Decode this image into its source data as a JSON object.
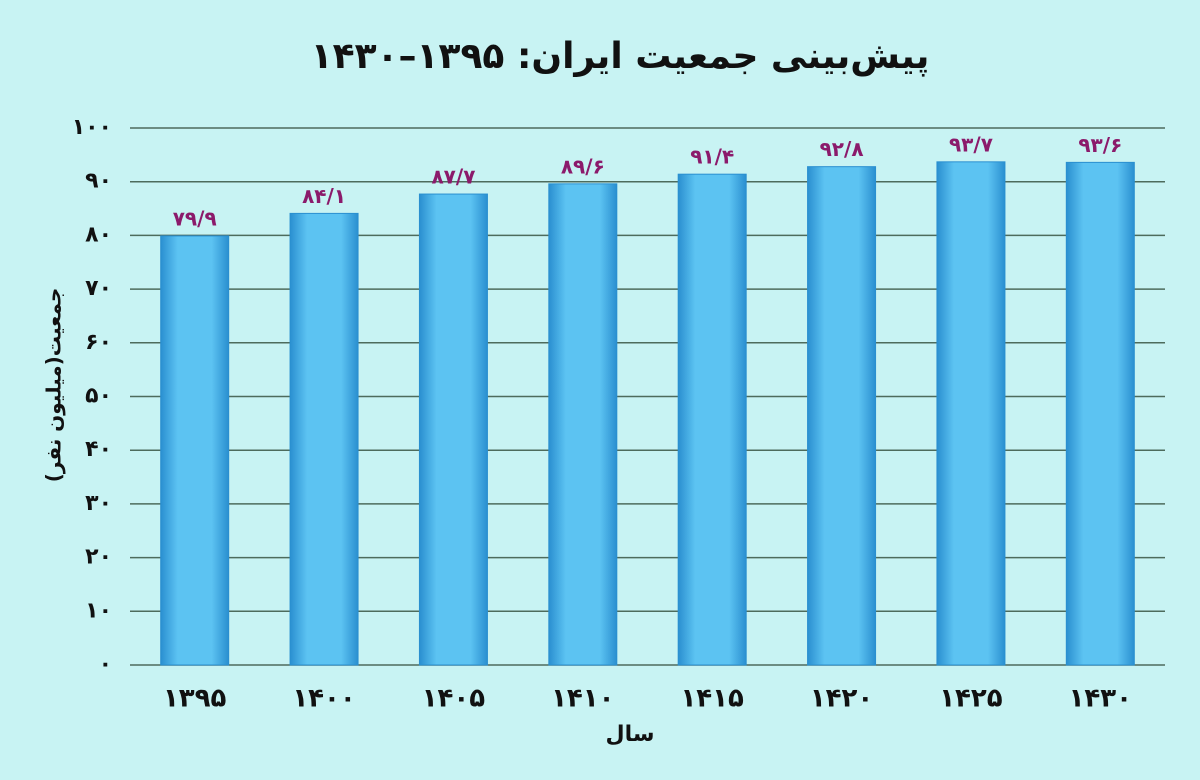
{
  "chart_data": {
    "type": "bar",
    "title": "پیش‌بینی جمعیت ایران: ۱۳۹۵–۱۴۳۰",
    "x_label": "سال",
    "y_label": "جمعیت(میلیون نفر)",
    "categories": [
      "۱۳۹۵",
      "۱۴۰۰",
      "۱۴۰۵",
      "۱۴۱۰",
      "۱۴۱۵",
      "۱۴۲۰",
      "۱۴۲۵",
      "۱۴۳۰"
    ],
    "values": [
      79.9,
      84.1,
      87.7,
      89.6,
      91.4,
      92.8,
      93.7,
      93.6
    ],
    "value_labels": [
      "۷۹/۹",
      "۸۴/۱",
      "۸۷/۷",
      "۸۹/۶",
      "۹۱/۴",
      "۹۲/۸",
      "۹۳/۷",
      "۹۳/۶"
    ],
    "color": "#4fb8ee",
    "ylim": [
      0,
      100
    ],
    "yticks": [
      {
        "value": 0,
        "label": "۰"
      },
      {
        "value": 10,
        "label": "۱۰"
      },
      {
        "value": 20,
        "label": "۲۰"
      },
      {
        "value": 30,
        "label": "۳۰"
      },
      {
        "value": 40,
        "label": "۴۰"
      },
      {
        "value": 50,
        "label": "۵۰"
      },
      {
        "value": 60,
        "label": "۶۰"
      },
      {
        "value": 70,
        "label": "۷۰"
      },
      {
        "value": 80,
        "label": "۸۰"
      },
      {
        "value": 90,
        "label": "۹۰"
      },
      {
        "value": 100,
        "label": "۱۰۰"
      }
    ],
    "grid": true
  }
}
